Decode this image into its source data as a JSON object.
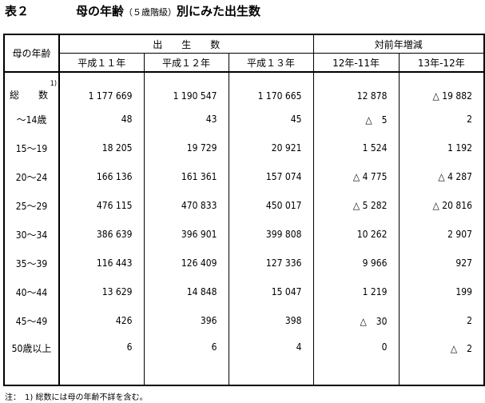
{
  "title": {
    "number": "表２",
    "main": "母の年齢",
    "sub": "（５歳階級）",
    "tail": "別にみた出生数"
  },
  "header": {
    "age": "母の年齢",
    "births": "出　　生　　数",
    "change": "対前年増減",
    "cols": [
      "平成１１年",
      "平成１２年",
      "平成１３年",
      "12年-11年",
      "13年-12年"
    ]
  },
  "rows": [
    {
      "label": "総　　数",
      "note": "1)",
      "v": [
        "1 177 669",
        "1 190 547",
        "1 170 665",
        "12 878",
        "△ 19 882"
      ]
    },
    {
      "label": "～14歳",
      "v": [
        "48",
        "43",
        "45",
        "△　5",
        "2"
      ]
    },
    {
      "label": "15～19",
      "v": [
        "18 205",
        "19 729",
        "20 921",
        "1 524",
        "1 192"
      ]
    },
    {
      "label": "20～24",
      "v": [
        "166 136",
        "161 361",
        "157 074",
        "△ 4 775",
        "△ 4 287"
      ]
    },
    {
      "label": "25～29",
      "v": [
        "476 115",
        "470 833",
        "450 017",
        "△ 5 282",
        "△ 20 816"
      ]
    },
    {
      "label": "30～34",
      "v": [
        "386 639",
        "396 901",
        "399 808",
        "10 262",
        "2 907"
      ]
    },
    {
      "label": "35～39",
      "v": [
        "116 443",
        "126 409",
        "127 336",
        "9 966",
        "927"
      ]
    },
    {
      "label": "40～44",
      "v": [
        "13 629",
        "14 848",
        "15 047",
        "1 219",
        "199"
      ]
    },
    {
      "label": "45～49",
      "v": [
        "426",
        "396",
        "398",
        "△　30",
        "2"
      ]
    },
    {
      "label": "50歳以上",
      "v": [
        "6",
        "6",
        "4",
        "0",
        "△　2"
      ]
    }
  ],
  "footnote": "注：　1) 総数には母の年齢不詳を含む。"
}
